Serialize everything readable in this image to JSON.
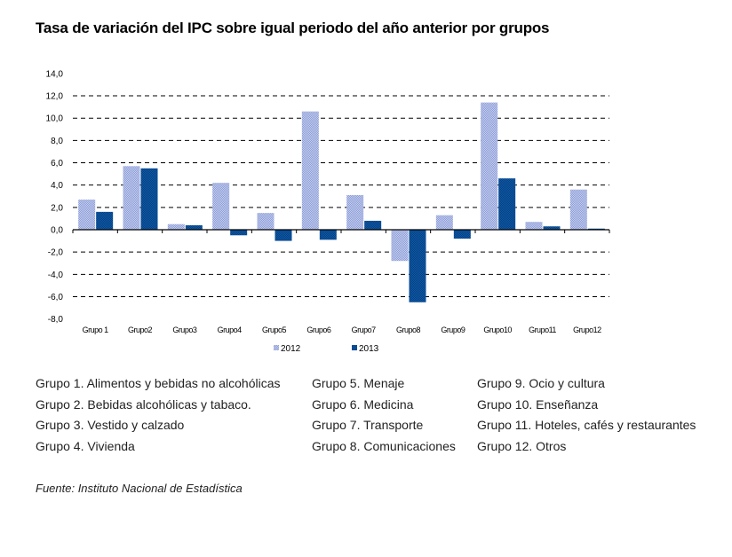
{
  "chart_data": {
    "type": "bar",
    "title": "Tasa de variación del IPC sobre igual periodo del año anterior por grupos",
    "xlabel": "",
    "ylabel": "",
    "ylim": [
      -8,
      14
    ],
    "yticks": [
      14,
      12,
      10,
      8,
      6,
      4,
      2,
      0,
      -2,
      -4,
      -6,
      -8
    ],
    "ytick_labels": [
      "14,0",
      "12,0",
      "10,0",
      "8,0",
      "6,0",
      "4,0",
      "2,0",
      "0,0",
      "-2,0",
      "-4,0",
      "-6,0",
      "-8,0"
    ],
    "grid": "dashed horizontal",
    "categories": [
      "Grupo 1",
      "Grupo2",
      "Grupo3",
      "Grupo4",
      "Grupo5",
      "Grupo6",
      "Grupo7",
      "Grupo8",
      "Grupo9",
      "Grupo10",
      "Grupo11",
      "Grupo12"
    ],
    "series": [
      {
        "name": "2012",
        "color": "#a9b6e0",
        "values": [
          2.7,
          5.7,
          0.5,
          4.2,
          1.5,
          10.6,
          3.1,
          -2.8,
          1.3,
          11.4,
          0.7,
          3.6
        ]
      },
      {
        "name": "2013",
        "color": "#0d4f9a",
        "values": [
          1.6,
          5.5,
          0.4,
          -0.5,
          -1.0,
          -0.9,
          0.8,
          -6.5,
          -0.8,
          4.6,
          0.3,
          0.1
        ]
      }
    ],
    "legend": "bottom-center"
  },
  "groups_legend": {
    "columns": [
      [
        "Grupo 1. Alimentos y bebidas no alcohólicas",
        "Grupo 2. Bebidas alcohólicas y  tabaco.",
        "Grupo 3. Vestido y calzado",
        "Grupo 4. Vivienda"
      ],
      [
        "Grupo 5. Menaje",
        "Grupo 6. Medicina",
        "Grupo 7. Transporte",
        "Grupo 8. Comunicaciones"
      ],
      [
        "Grupo 9. Ocio y cultura",
        "Grupo 10. Enseñanza",
        "Grupo 11. Hoteles, cafés y restaurantes",
        "Grupo 12. Otros"
      ]
    ]
  },
  "source": "Fuente: Instituto Nacional de Estadística"
}
